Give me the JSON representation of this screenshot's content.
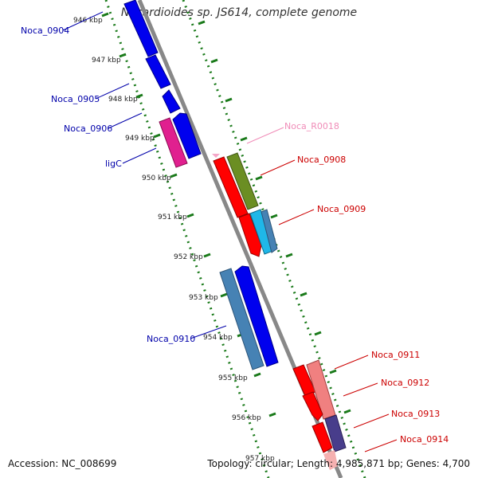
{
  "title": "Nocardioides sp. JS614, complete genome",
  "footer": {
    "accession": "Accession: NC_008699",
    "summary": "Topology: circular; Length: 4,985,871 bp; Genes: 4,700"
  },
  "colors": {
    "backbone": "#888888",
    "tick": "#1a7a1a",
    "blue_gene": "#0000ee",
    "steelblue_gene": "#4682b4",
    "magenta_gene": "#e0208f",
    "red_gene": "#ff0000",
    "olive_gene": "#6b8e23",
    "cyan_gene": "#1fb7e8",
    "pink_gene": "#f08080",
    "purple_gene": "#483d8b",
    "rna_gene": "#f4a6c8",
    "blue_label": "#0000aa",
    "red_label": "#cc0000",
    "pink_label": "#f08cb8"
  },
  "scale_labels": [
    "946 kbp",
    "947 kbp",
    "948 kbp",
    "949 kbp",
    "950 kbp",
    "951 kbp",
    "952 kbp",
    "953 kbp",
    "954 kbp",
    "955 kbp",
    "956 kbp",
    "957 kbp"
  ],
  "labels_left": [
    "Noca_0904",
    "Noca_0905",
    "Noca_0906",
    "ligC",
    "Noca_0910"
  ],
  "labels_right": [
    "Noca_R0018",
    "Noca_0908",
    "Noca_0909",
    "Noca_0911",
    "Noca_0912",
    "Noca_0913",
    "Noca_0914"
  ]
}
